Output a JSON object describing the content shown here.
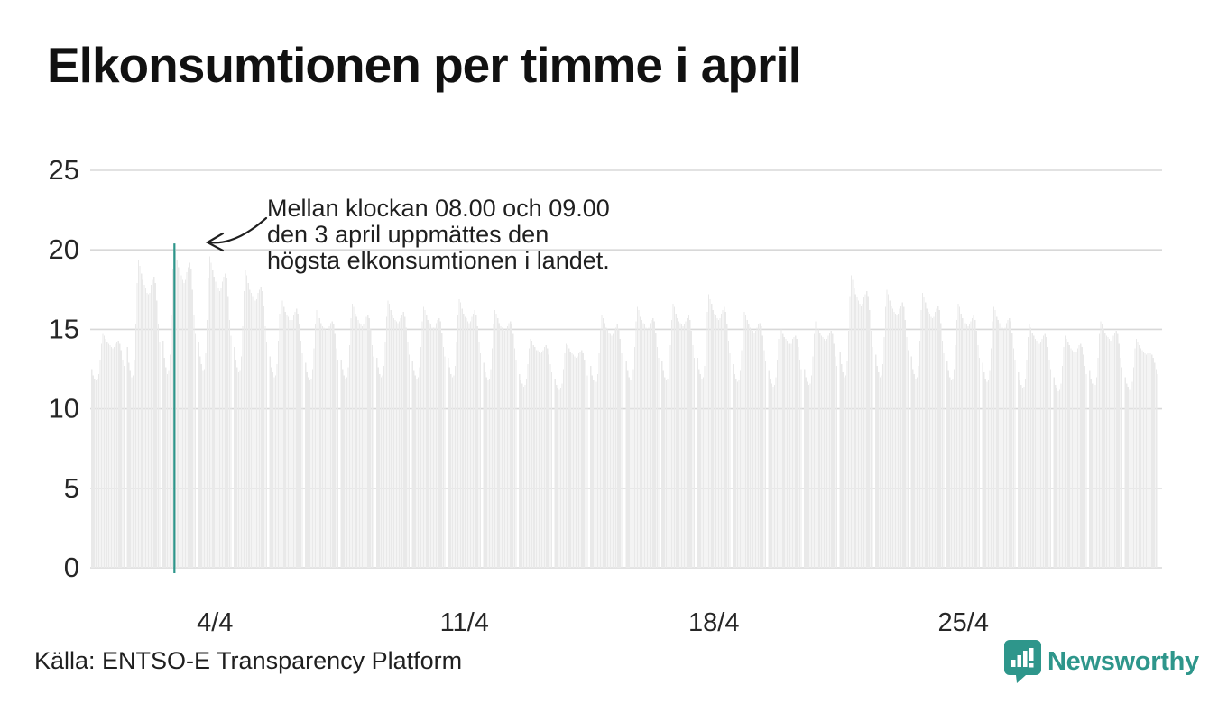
{
  "page": {
    "title": "Elkonsumtionen per timme i april"
  },
  "annotation": {
    "line1": "Mellan klockan 08.00 och 09.00",
    "line2": "den 3 april uppmättes den",
    "line3": "högsta elkonsumtionen i landet."
  },
  "source": {
    "label": "Källa: ENTSO-E Transparency Platform"
  },
  "brand": {
    "name": "Newsworthy",
    "logo_icon": "bar-chart-speech-bubble-icon"
  },
  "colors": {
    "bar": "#e9e9e9",
    "grid": "#d8d8d8",
    "highlight": "#2e968b",
    "text": "#262626",
    "title": "#111111"
  },
  "chart_data": {
    "type": "bar",
    "title": "Elkonsumtionen per timme i april",
    "xlabel": "",
    "ylabel": "",
    "ylim": [
      0,
      25
    ],
    "yticks": [
      0,
      5,
      10,
      15,
      20,
      25
    ],
    "grid": true,
    "legend": "none",
    "xticks": [
      {
        "label": "4/4",
        "day_index": 3
      },
      {
        "label": "11/4",
        "day_index": 10
      },
      {
        "label": "18/4",
        "day_index": 17
      },
      {
        "label": "25/4",
        "day_index": 24
      }
    ],
    "highlight": {
      "date": "3/4",
      "hour_interval": "08.00–09.00",
      "value": 20.4,
      "day_index": 2,
      "hour_index": 8
    },
    "days": [
      {
        "date": "1/4",
        "hours": [
          12.5,
          12.1,
          11.9,
          11.8,
          11.9,
          12.2,
          13.1,
          14.1,
          14.7,
          14.6,
          14.4,
          14.2,
          14.1,
          14.0,
          13.9,
          13.8,
          13.9,
          14.1,
          14.2,
          14.3,
          14.1,
          13.7,
          13.1,
          12.7
        ]
      },
      {
        "date": "2/4",
        "hours": [
          13.9,
          12.9,
          12.4,
          12.0,
          12.1,
          13.1,
          15.3,
          17.9,
          19.4,
          19.0,
          18.5,
          18.1,
          17.8,
          17.6,
          17.3,
          17.2,
          17.3,
          17.8,
          18.1,
          18.3,
          17.9,
          16.8,
          15.3,
          14.2
        ]
      },
      {
        "date": "3/4",
        "hours": [
          14.3,
          13.2,
          12.6,
          12.2,
          12.4,
          13.4,
          15.9,
          18.8,
          20.4,
          20.0,
          19.4,
          18.9,
          18.6,
          18.4,
          18.1,
          17.9,
          18.1,
          18.6,
          18.9,
          19.2,
          18.8,
          17.5,
          15.9,
          14.7
        ]
      },
      {
        "date": "4/4",
        "hours": [
          14.2,
          13.3,
          12.8,
          12.4,
          12.5,
          13.5,
          15.6,
          18.2,
          19.6,
          19.2,
          18.7,
          18.3,
          18.0,
          17.8,
          17.6,
          17.4,
          17.6,
          18.0,
          18.3,
          18.5,
          18.2,
          17.1,
          15.6,
          14.6
        ]
      },
      {
        "date": "5/4",
        "hours": [
          13.9,
          13.1,
          12.6,
          12.3,
          12.4,
          13.3,
          15.2,
          17.4,
          18.7,
          18.4,
          17.9,
          17.5,
          17.3,
          17.1,
          16.9,
          16.8,
          16.9,
          17.3,
          17.5,
          17.7,
          17.4,
          16.5,
          15.2,
          14.2
        ]
      },
      {
        "date": "6/4",
        "hours": [
          13.3,
          12.6,
          12.3,
          12.0,
          12.1,
          12.8,
          14.3,
          16.0,
          17.0,
          16.8,
          16.4,
          16.1,
          15.9,
          15.8,
          15.6,
          15.5,
          15.6,
          15.9,
          16.1,
          16.3,
          16.0,
          15.3,
          14.3,
          13.5
        ]
      },
      {
        "date": "7/4",
        "hours": [
          12.9,
          12.3,
          12.0,
          11.8,
          11.9,
          12.5,
          13.8,
          15.3,
          16.2,
          16.0,
          15.7,
          15.4,
          15.2,
          15.1,
          15.0,
          14.9,
          15.0,
          15.2,
          15.4,
          15.5,
          15.3,
          14.7,
          13.8,
          13.1
        ]
      },
      {
        "date": "8/4",
        "hours": [
          13.1,
          12.5,
          12.1,
          11.9,
          12.0,
          12.6,
          14.0,
          15.7,
          16.6,
          16.4,
          16.0,
          15.8,
          15.6,
          15.4,
          15.3,
          15.2,
          15.3,
          15.6,
          15.8,
          15.9,
          15.7,
          15.0,
          14.0,
          13.3
        ]
      },
      {
        "date": "9/4",
        "hours": [
          13.2,
          12.6,
          12.2,
          12.0,
          12.1,
          12.7,
          14.2,
          15.8,
          16.8,
          16.6,
          16.2,
          15.9,
          15.7,
          15.6,
          15.5,
          15.4,
          15.5,
          15.7,
          15.9,
          16.1,
          15.8,
          15.1,
          14.2,
          13.4
        ]
      },
      {
        "date": "10/4",
        "hours": [
          13.0,
          12.4,
          12.1,
          11.9,
          12.0,
          12.6,
          13.9,
          15.5,
          16.4,
          16.2,
          15.9,
          15.6,
          15.4,
          15.3,
          15.1,
          15.1,
          15.1,
          15.4,
          15.6,
          15.7,
          15.5,
          14.8,
          13.9,
          13.3
        ]
      },
      {
        "date": "11/4",
        "hours": [
          13.2,
          12.6,
          12.2,
          12.0,
          12.1,
          12.7,
          14.2,
          15.9,
          16.9,
          16.7,
          16.3,
          16.0,
          15.8,
          15.7,
          15.5,
          15.4,
          15.5,
          15.8,
          16.0,
          16.2,
          15.9,
          15.2,
          14.2,
          13.5
        ]
      },
      {
        "date": "12/4",
        "hours": [
          12.9,
          12.3,
          12.0,
          11.8,
          11.9,
          12.5,
          13.8,
          15.3,
          16.2,
          16.0,
          15.7,
          15.4,
          15.2,
          15.1,
          15.0,
          14.9,
          15.0,
          15.2,
          15.4,
          15.5,
          15.3,
          14.7,
          13.8,
          13.1
        ]
      },
      {
        "date": "13/4",
        "hours": [
          12.2,
          11.8,
          11.6,
          11.4,
          11.5,
          11.9,
          12.8,
          13.8,
          14.4,
          14.3,
          14.0,
          13.9,
          13.7,
          13.7,
          13.6,
          13.5,
          13.6,
          13.7,
          13.9,
          14.0,
          13.8,
          13.4,
          12.8,
          12.3
        ]
      },
      {
        "date": "14/4",
        "hours": [
          11.9,
          11.5,
          11.3,
          11.2,
          11.3,
          11.6,
          12.5,
          13.5,
          14.1,
          14.0,
          13.8,
          13.6,
          13.5,
          13.4,
          13.3,
          13.2,
          13.3,
          13.5,
          13.6,
          13.7,
          13.5,
          13.1,
          12.5,
          12.1
        ]
      },
      {
        "date": "15/4",
        "hours": [
          12.7,
          12.1,
          11.8,
          11.6,
          11.7,
          12.2,
          13.5,
          15.0,
          15.9,
          15.7,
          15.4,
          15.1,
          15.0,
          14.8,
          14.7,
          14.6,
          14.7,
          15.0,
          15.1,
          15.3,
          15.0,
          14.4,
          13.5,
          12.9
        ]
      },
      {
        "date": "16/4",
        "hours": [
          13.0,
          12.4,
          12.0,
          11.8,
          11.9,
          12.5,
          13.9,
          15.5,
          16.4,
          16.2,
          15.8,
          15.6,
          15.4,
          15.3,
          15.1,
          15.0,
          15.1,
          15.4,
          15.6,
          15.7,
          15.5,
          14.8,
          13.9,
          13.2
        ]
      },
      {
        "date": "17/4",
        "hours": [
          13.0,
          12.4,
          12.0,
          11.8,
          11.9,
          12.5,
          14.0,
          15.6,
          16.6,
          16.4,
          16.0,
          15.7,
          15.5,
          15.4,
          15.3,
          15.2,
          15.3,
          15.5,
          15.7,
          15.9,
          15.6,
          14.9,
          14.0,
          13.2
        ]
      },
      {
        "date": "18/4",
        "hours": [
          13.2,
          12.5,
          12.2,
          11.9,
          12.0,
          12.7,
          14.3,
          16.1,
          17.2,
          16.9,
          16.6,
          16.2,
          16.0,
          15.9,
          15.7,
          15.6,
          15.7,
          16.0,
          16.2,
          16.4,
          16.1,
          15.3,
          14.3,
          13.5
        ]
      },
      {
        "date": "19/4",
        "hours": [
          12.8,
          12.2,
          11.9,
          11.7,
          11.8,
          12.4,
          13.7,
          15.2,
          16.1,
          15.9,
          15.6,
          15.3,
          15.1,
          15.0,
          14.9,
          14.8,
          14.9,
          15.1,
          15.3,
          15.4,
          15.2,
          14.6,
          13.7,
          13.0
        ]
      },
      {
        "date": "20/4",
        "hours": [
          12.4,
          11.9,
          11.6,
          11.4,
          11.5,
          12.0,
          13.1,
          14.4,
          15.2,
          15.0,
          14.7,
          14.5,
          14.4,
          14.3,
          14.1,
          14.1,
          14.1,
          14.4,
          14.5,
          14.6,
          14.4,
          13.9,
          13.1,
          12.5
        ]
      },
      {
        "date": "21/4",
        "hours": [
          12.5,
          12.0,
          11.7,
          11.5,
          11.6,
          12.1,
          13.3,
          14.7,
          15.5,
          15.3,
          15.0,
          14.8,
          14.6,
          14.5,
          14.4,
          14.3,
          14.4,
          14.6,
          14.8,
          14.9,
          14.7,
          14.1,
          13.3,
          12.7
        ]
      },
      {
        "date": "22/4",
        "hours": [
          13.6,
          12.8,
          12.3,
          12.0,
          12.1,
          13.0,
          14.9,
          17.1,
          18.4,
          18.1,
          17.6,
          17.2,
          17.0,
          16.8,
          16.6,
          16.5,
          16.6,
          17.0,
          17.2,
          17.4,
          17.1,
          16.2,
          14.9,
          13.9
        ]
      },
      {
        "date": "23/4",
        "hours": [
          13.4,
          12.7,
          12.3,
          12.0,
          12.1,
          12.8,
          14.5,
          16.4,
          17.5,
          17.2,
          16.8,
          16.5,
          16.3,
          16.1,
          16.0,
          15.9,
          16.0,
          16.3,
          16.5,
          16.7,
          16.4,
          15.6,
          14.5,
          13.7
        ]
      },
      {
        "date": "24/4",
        "hours": [
          13.3,
          12.5,
          12.2,
          11.9,
          12.0,
          12.7,
          14.3,
          16.2,
          17.3,
          17.0,
          16.7,
          16.3,
          16.1,
          16.0,
          15.8,
          15.7,
          15.8,
          16.1,
          16.3,
          16.5,
          16.2,
          15.4,
          14.3,
          13.5
        ]
      },
      {
        "date": "25/4",
        "hours": [
          13.0,
          12.4,
          12.0,
          11.8,
          11.9,
          12.5,
          14.0,
          15.6,
          16.6,
          16.4,
          16.0,
          15.7,
          15.5,
          15.4,
          15.3,
          15.2,
          15.3,
          15.5,
          15.7,
          15.9,
          15.6,
          14.9,
          14.0,
          13.2
        ]
      },
      {
        "date": "26/4",
        "hours": [
          12.9,
          12.3,
          11.9,
          11.7,
          11.8,
          12.4,
          13.8,
          15.5,
          16.4,
          16.2,
          15.8,
          15.6,
          15.4,
          15.2,
          15.1,
          15.0,
          15.1,
          15.4,
          15.6,
          15.7,
          15.5,
          14.8,
          13.8,
          13.1
        ]
      },
      {
        "date": "27/4",
        "hours": [
          12.3,
          11.8,
          11.5,
          11.3,
          11.4,
          11.9,
          13.1,
          14.5,
          15.3,
          15.1,
          14.8,
          14.6,
          14.4,
          14.3,
          14.2,
          14.1,
          14.2,
          14.4,
          14.6,
          14.7,
          14.5,
          13.9,
          13.1,
          12.5
        ]
      },
      {
        "date": "28/4",
        "hours": [
          12.0,
          11.5,
          11.3,
          11.1,
          11.2,
          11.6,
          12.7,
          13.9,
          14.6,
          14.4,
          14.2,
          14.0,
          13.8,
          13.7,
          13.6,
          13.6,
          13.6,
          13.8,
          14.0,
          14.1,
          13.9,
          13.4,
          12.7,
          12.2
        ]
      },
      {
        "date": "29/4",
        "hours": [
          12.4,
          11.9,
          11.6,
          11.4,
          11.5,
          12.0,
          13.2,
          14.7,
          15.5,
          15.3,
          15.0,
          14.8,
          14.6,
          14.5,
          14.4,
          14.3,
          14.4,
          14.6,
          14.8,
          14.9,
          14.7,
          14.1,
          13.2,
          12.6
        ]
      },
      {
        "date": "30/4",
        "hours": [
          12.0,
          11.6,
          11.4,
          11.2,
          11.3,
          11.7,
          12.6,
          13.8,
          14.4,
          14.2,
          14.0,
          13.8,
          13.7,
          13.6,
          13.5,
          13.4,
          13.5,
          13.6,
          13.5,
          13.4,
          13.2,
          12.9,
          12.5,
          12.2
        ]
      }
    ]
  }
}
